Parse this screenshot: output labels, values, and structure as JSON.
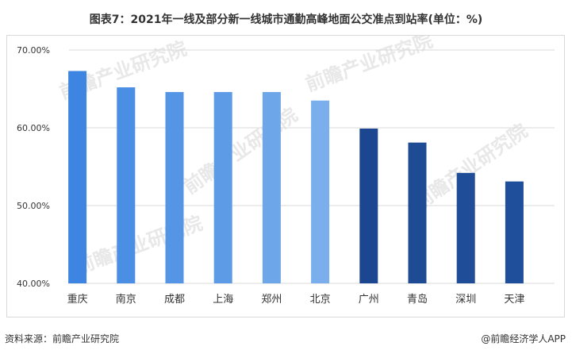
{
  "title": "图表7：2021年一线及部分新一线城市通勤高峰地面公交准点到站率(单位：%)",
  "source": "资料来源：前瞻产业研究院",
  "credit": "@前瞻经济学人APP",
  "watermark": "前瞻产业研究院",
  "chart_data": {
    "type": "bar",
    "categories": [
      "重庆",
      "南京",
      "成都",
      "上海",
      "郑州",
      "北京",
      "广州",
      "青岛",
      "深圳",
      "天津"
    ],
    "values": [
      67.3,
      65.2,
      64.6,
      64.6,
      64.6,
      63.5,
      59.9,
      58.1,
      54.2,
      53.1
    ],
    "colors": [
      "#3d85e0",
      "#4a8fe3",
      "#5595e5",
      "#5e9be7",
      "#6ea6ea",
      "#7aaeed",
      "#1c468f",
      "#1f4b94",
      "#1f4d98",
      "#1f4e9a"
    ],
    "ylim": [
      40,
      70
    ],
    "yticks": [
      40,
      50,
      60,
      70
    ],
    "ytick_labels": [
      "40.00%",
      "50.00%",
      "60.00%",
      "70.00%"
    ],
    "grid": true
  }
}
